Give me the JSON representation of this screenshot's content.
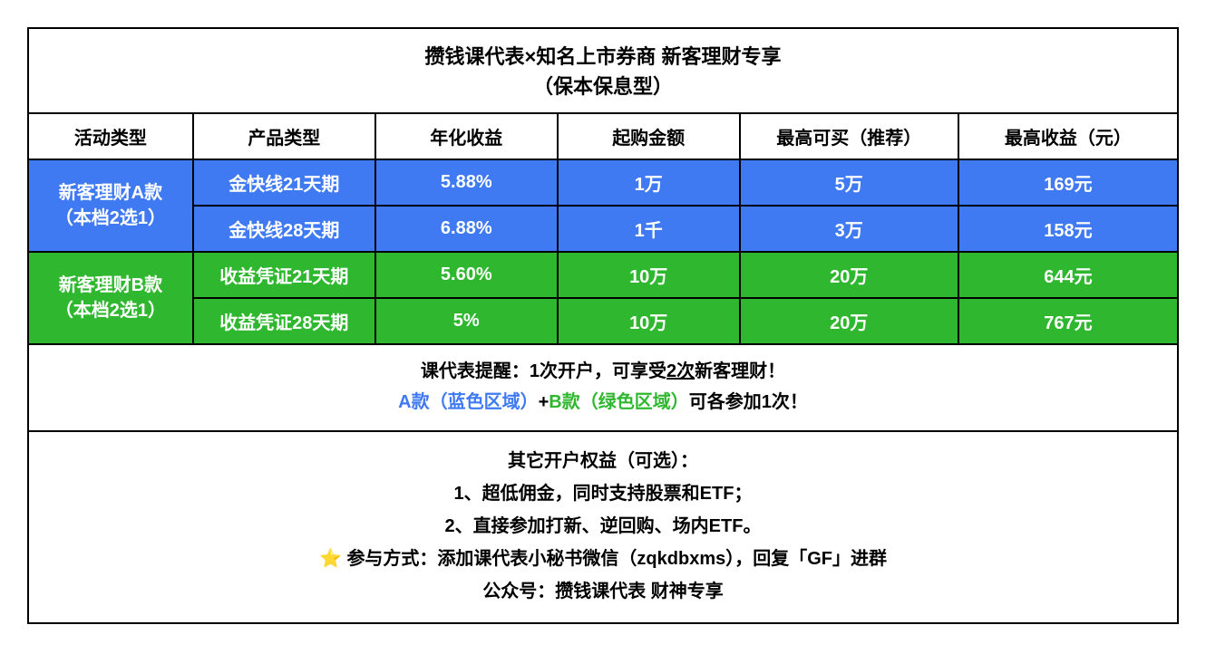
{
  "colors": {
    "blue": "#3f7af2",
    "green": "#2fb82f",
    "star": "#f5b942",
    "border": "#000000",
    "text": "#000000",
    "white": "#ffffff"
  },
  "title": {
    "line1": "攒钱课代表×知名上市券商 新客理财专享",
    "line2": "（保本保息型）"
  },
  "headers": {
    "c1": "活动类型",
    "c2": "产品类型",
    "c3": "年化收益",
    "c4": "起购金额",
    "c5": "最高可买（推荐）",
    "c6": "最高收益（元）"
  },
  "groupA": {
    "label_l1": "新客理财A款",
    "label_l2": "（本档2选1）",
    "rows": [
      {
        "product": "金快线21天期",
        "yield": "5.88%",
        "min": "1万",
        "max": "5万",
        "profit": "169元"
      },
      {
        "product": "金快线28天期",
        "yield": "6.88%",
        "min": "1千",
        "max": "3万",
        "profit": "158元"
      }
    ]
  },
  "groupB": {
    "label_l1": "新客理财B款",
    "label_l2": "（本档2选1）",
    "rows": [
      {
        "product": "收益凭证21天期",
        "yield": "5.60%",
        "min": "10万",
        "max": "20万",
        "profit": "644元"
      },
      {
        "product": "收益凭证28天期",
        "yield": "5%",
        "min": "10万",
        "max": "20万",
        "profit": "767元"
      }
    ]
  },
  "note": {
    "l1_pre": "课代表提醒：1次开户，可享受",
    "l1_u": "2次",
    "l1_post": "新客理财！",
    "l2_a": "A款（蓝色区域）",
    "l2_plus": "+",
    "l2_b": "B款（绿色区域）",
    "l2_tail": "可各参加1次！"
  },
  "footer": {
    "l1": "其它开户权益（可选）：",
    "l2": "1、超低佣金，同时支持股票和ETF；",
    "l3": "2、直接参加打新、逆回购、场内ETF。",
    "l4_star": "⭐",
    "l4": "参与方式：添加课代表小秘书微信（zqkdbxms），回复「GF」进群",
    "l5": "公众号：攒钱课代表 财神专享"
  }
}
